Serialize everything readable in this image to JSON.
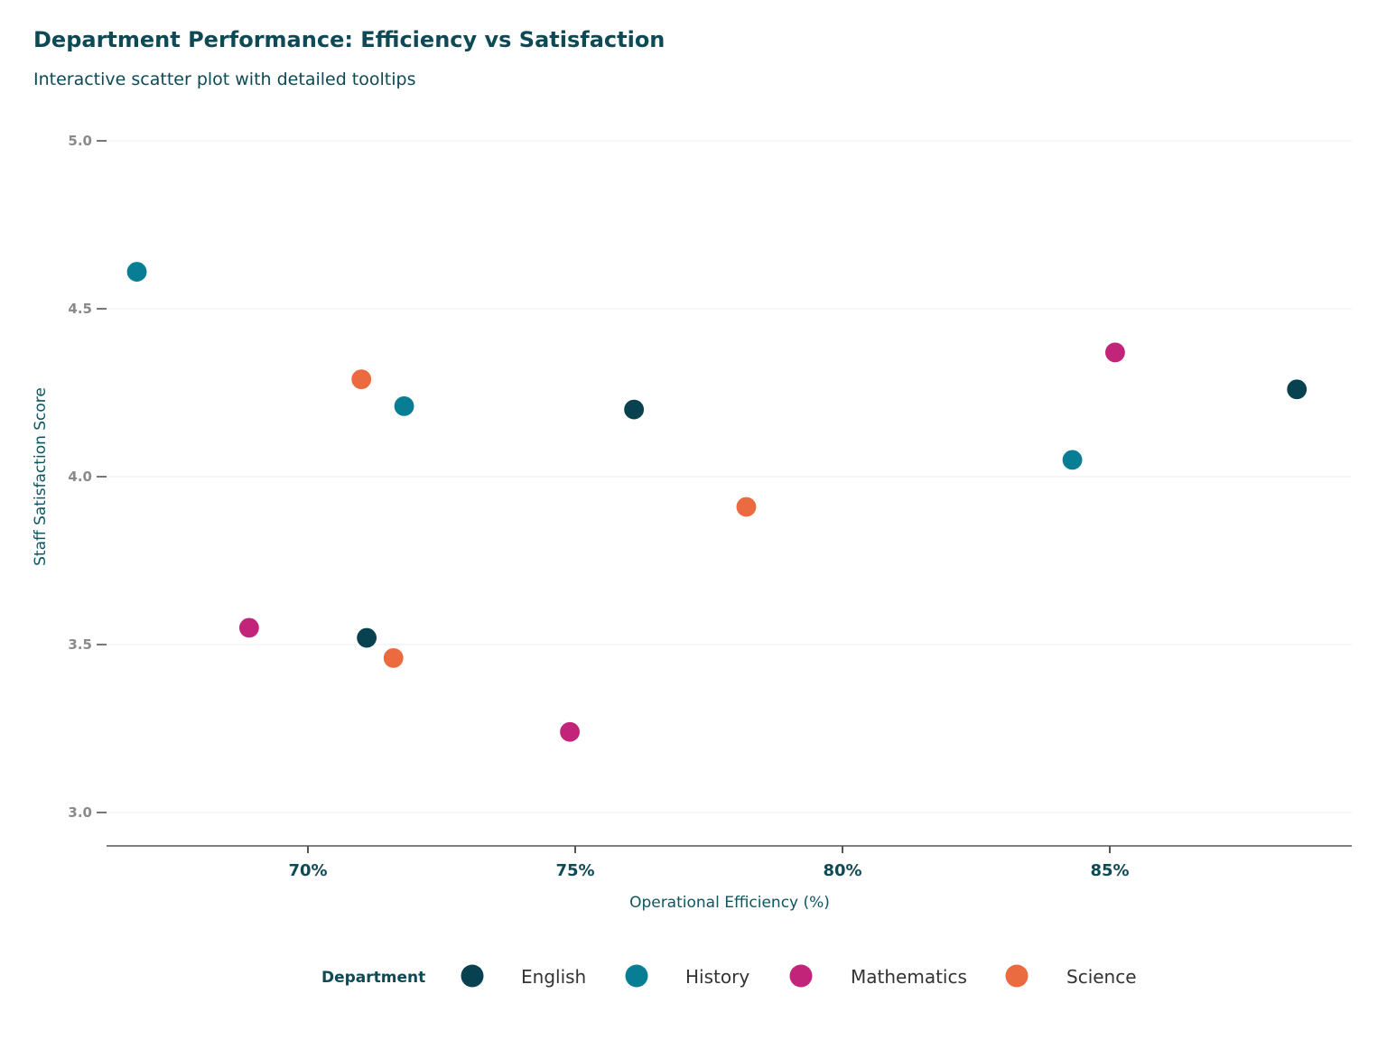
{
  "title": "Department Performance: Efficiency vs Satisfaction",
  "subtitle": "Interactive scatter plot with detailed tooltips",
  "chart_data": {
    "type": "scatter",
    "title": "Department Performance: Efficiency vs Satisfaction",
    "subtitle": "Interactive scatter plot with detailed tooltips",
    "xlabel": "Operational Efficiency (%)",
    "ylabel": "Staff Satisfaction Score",
    "xlim": [
      66.2,
      89.5
    ],
    "ylim": [
      2.9,
      5.05
    ],
    "x_ticks": [
      70,
      75,
      80,
      85
    ],
    "x_tick_labels": [
      "70%",
      "75%",
      "80%",
      "85%"
    ],
    "y_ticks": [
      3.0,
      3.5,
      4.0,
      4.5,
      5.0
    ],
    "y_tick_labels": [
      "3.0",
      "3.5",
      "4.0",
      "4.5",
      "5.0"
    ],
    "grid": "horizontal",
    "legend_title": "Department",
    "legend_position": "bottom",
    "series": [
      {
        "name": "English",
        "color": "#08414f",
        "points": [
          {
            "x": 71.1,
            "y": 3.52
          },
          {
            "x": 76.1,
            "y": 4.2
          },
          {
            "x": 88.5,
            "y": 4.26
          }
        ]
      },
      {
        "name": "History",
        "color": "#087e95",
        "points": [
          {
            "x": 66.8,
            "y": 4.61
          },
          {
            "x": 71.8,
            "y": 4.21
          },
          {
            "x": 84.3,
            "y": 4.05
          }
        ]
      },
      {
        "name": "Mathematics",
        "color": "#c2247a",
        "points": [
          {
            "x": 68.9,
            "y": 3.55
          },
          {
            "x": 74.9,
            "y": 3.24
          },
          {
            "x": 85.1,
            "y": 4.37
          }
        ]
      },
      {
        "name": "Science",
        "color": "#eb6a3f",
        "points": [
          {
            "x": 71.0,
            "y": 4.29
          },
          {
            "x": 71.6,
            "y": 3.46
          },
          {
            "x": 78.2,
            "y": 3.91
          }
        ]
      }
    ]
  }
}
